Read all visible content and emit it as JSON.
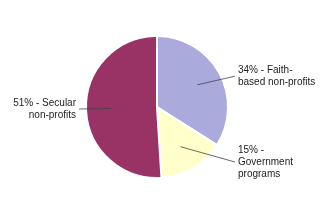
{
  "chart_data": {
    "type": "pie",
    "categories": [
      "34% - Faith-\nbased non-profits",
      "15% -\nGovernment\nprograms",
      "51% - Secular\nnon-profits"
    ],
    "values": [
      34,
      15,
      51
    ],
    "colors": [
      "#AAAADD",
      "#FFFFCC",
      "#993366"
    ]
  }
}
